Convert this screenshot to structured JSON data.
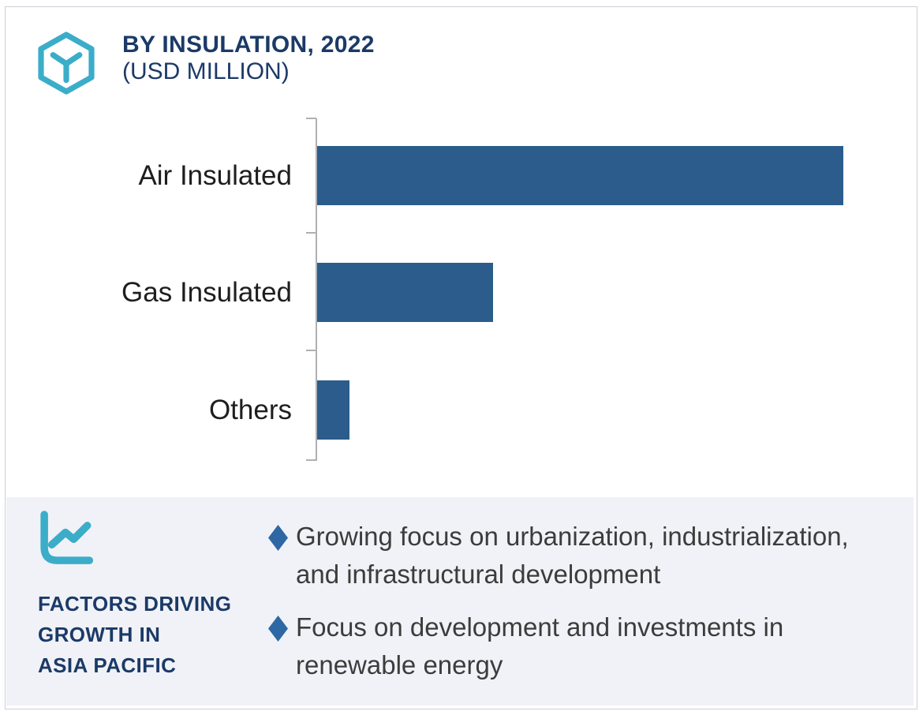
{
  "header": {
    "logo_icon": "hexagon-y-logo-icon",
    "title": "BY INSULATION, 2022",
    "subtitle": "(USD MILLION)"
  },
  "chart_data": {
    "type": "bar",
    "orientation": "horizontal",
    "title": "BY INSULATION, 2022",
    "subtitle": "(USD MILLION)",
    "unit": "USD Million",
    "categories": [
      "Air Insulated",
      "Gas Insulated",
      "Others"
    ],
    "values_pct_of_max": [
      100,
      33.4,
      6.2
    ],
    "value_labels_shown": false,
    "axis_tick_labels_shown": false,
    "grid": false,
    "legend": "none",
    "bar_color": "#2b5c8b",
    "axis_color": "#b0b0b3"
  },
  "factors_panel": {
    "icon": "line-chart-icon",
    "heading": "FACTORS DRIVING\nGROWTH IN\nASIA PACIFIC",
    "bullet_marker": "diamond",
    "bullet_color": "#2d68a4",
    "background_color": "#f1f2f7",
    "bullets": [
      "Growing focus on urbanization, industrialization,\nand infrastructural development",
      "Focus on development and investments in\nrenewable energy"
    ]
  },
  "colors": {
    "navy": "#1b3a67",
    "teal": "#3badc9",
    "bar_blue": "#2b5c8b",
    "body_text": "#3c3c3c"
  }
}
